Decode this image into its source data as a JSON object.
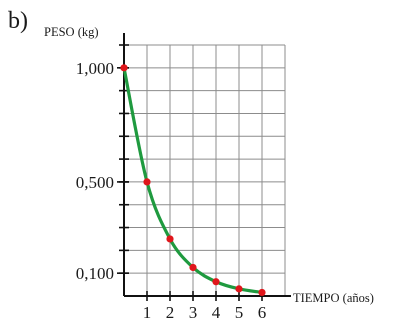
{
  "panel_label": "b)",
  "chart_data": {
    "type": "line",
    "ylabel": "PESO (kg)",
    "xlabel": "TIEMPO (años)",
    "x_ticks": [
      1,
      2,
      3,
      4,
      5,
      6
    ],
    "x_tick_labels": [
      "1",
      "2",
      "3",
      "4",
      "5",
      "6"
    ],
    "y_tick_values": [
      1.0,
      0.5,
      0.1
    ],
    "y_tick_labels": [
      "1,000",
      "0,500",
      "0,100"
    ],
    "xlim": [
      0,
      7
    ],
    "ylim": [
      0,
      1.1
    ],
    "grid": true,
    "series": [
      {
        "x": [
          0,
          1,
          2,
          3,
          4,
          5,
          6
        ],
        "values": [
          1.0,
          0.5,
          0.25,
          0.125,
          0.0625,
          0.03125,
          0.015625
        ],
        "line_color": "#1f9a3f",
        "marker_color": "#e0161b"
      }
    ]
  }
}
